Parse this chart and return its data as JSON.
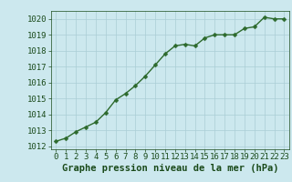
{
  "x": [
    0,
    1,
    2,
    3,
    4,
    5,
    6,
    7,
    8,
    9,
    10,
    11,
    12,
    13,
    14,
    15,
    16,
    17,
    18,
    19,
    20,
    21,
    22,
    23
  ],
  "y": [
    1012.3,
    1012.5,
    1012.9,
    1013.2,
    1013.5,
    1014.1,
    1014.9,
    1015.3,
    1015.8,
    1016.4,
    1017.1,
    1017.8,
    1018.3,
    1018.4,
    1018.3,
    1018.8,
    1019.0,
    1019.0,
    1019.0,
    1019.4,
    1019.5,
    1020.1,
    1020.0,
    1020.0
  ],
  "line_color": "#2d6a2d",
  "marker_color": "#2d6a2d",
  "bg_color": "#cce8ee",
  "grid_color": "#aacdd5",
  "xlabel": "Graphe pression niveau de la mer (hPa)",
  "xlabel_color": "#1a4a1a",
  "tick_color": "#1a4a1a",
  "ylim": [
    1011.8,
    1020.5
  ],
  "xlim": [
    -0.5,
    23.5
  ],
  "yticks": [
    1012,
    1013,
    1014,
    1015,
    1016,
    1017,
    1018,
    1019,
    1020
  ],
  "xticks": [
    0,
    1,
    2,
    3,
    4,
    5,
    6,
    7,
    8,
    9,
    10,
    11,
    12,
    13,
    14,
    15,
    16,
    17,
    18,
    19,
    20,
    21,
    22,
    23
  ],
  "xlabel_fontsize": 7.5,
  "tick_fontsize": 6.5,
  "line_width": 1.0,
  "marker_size": 2.5
}
